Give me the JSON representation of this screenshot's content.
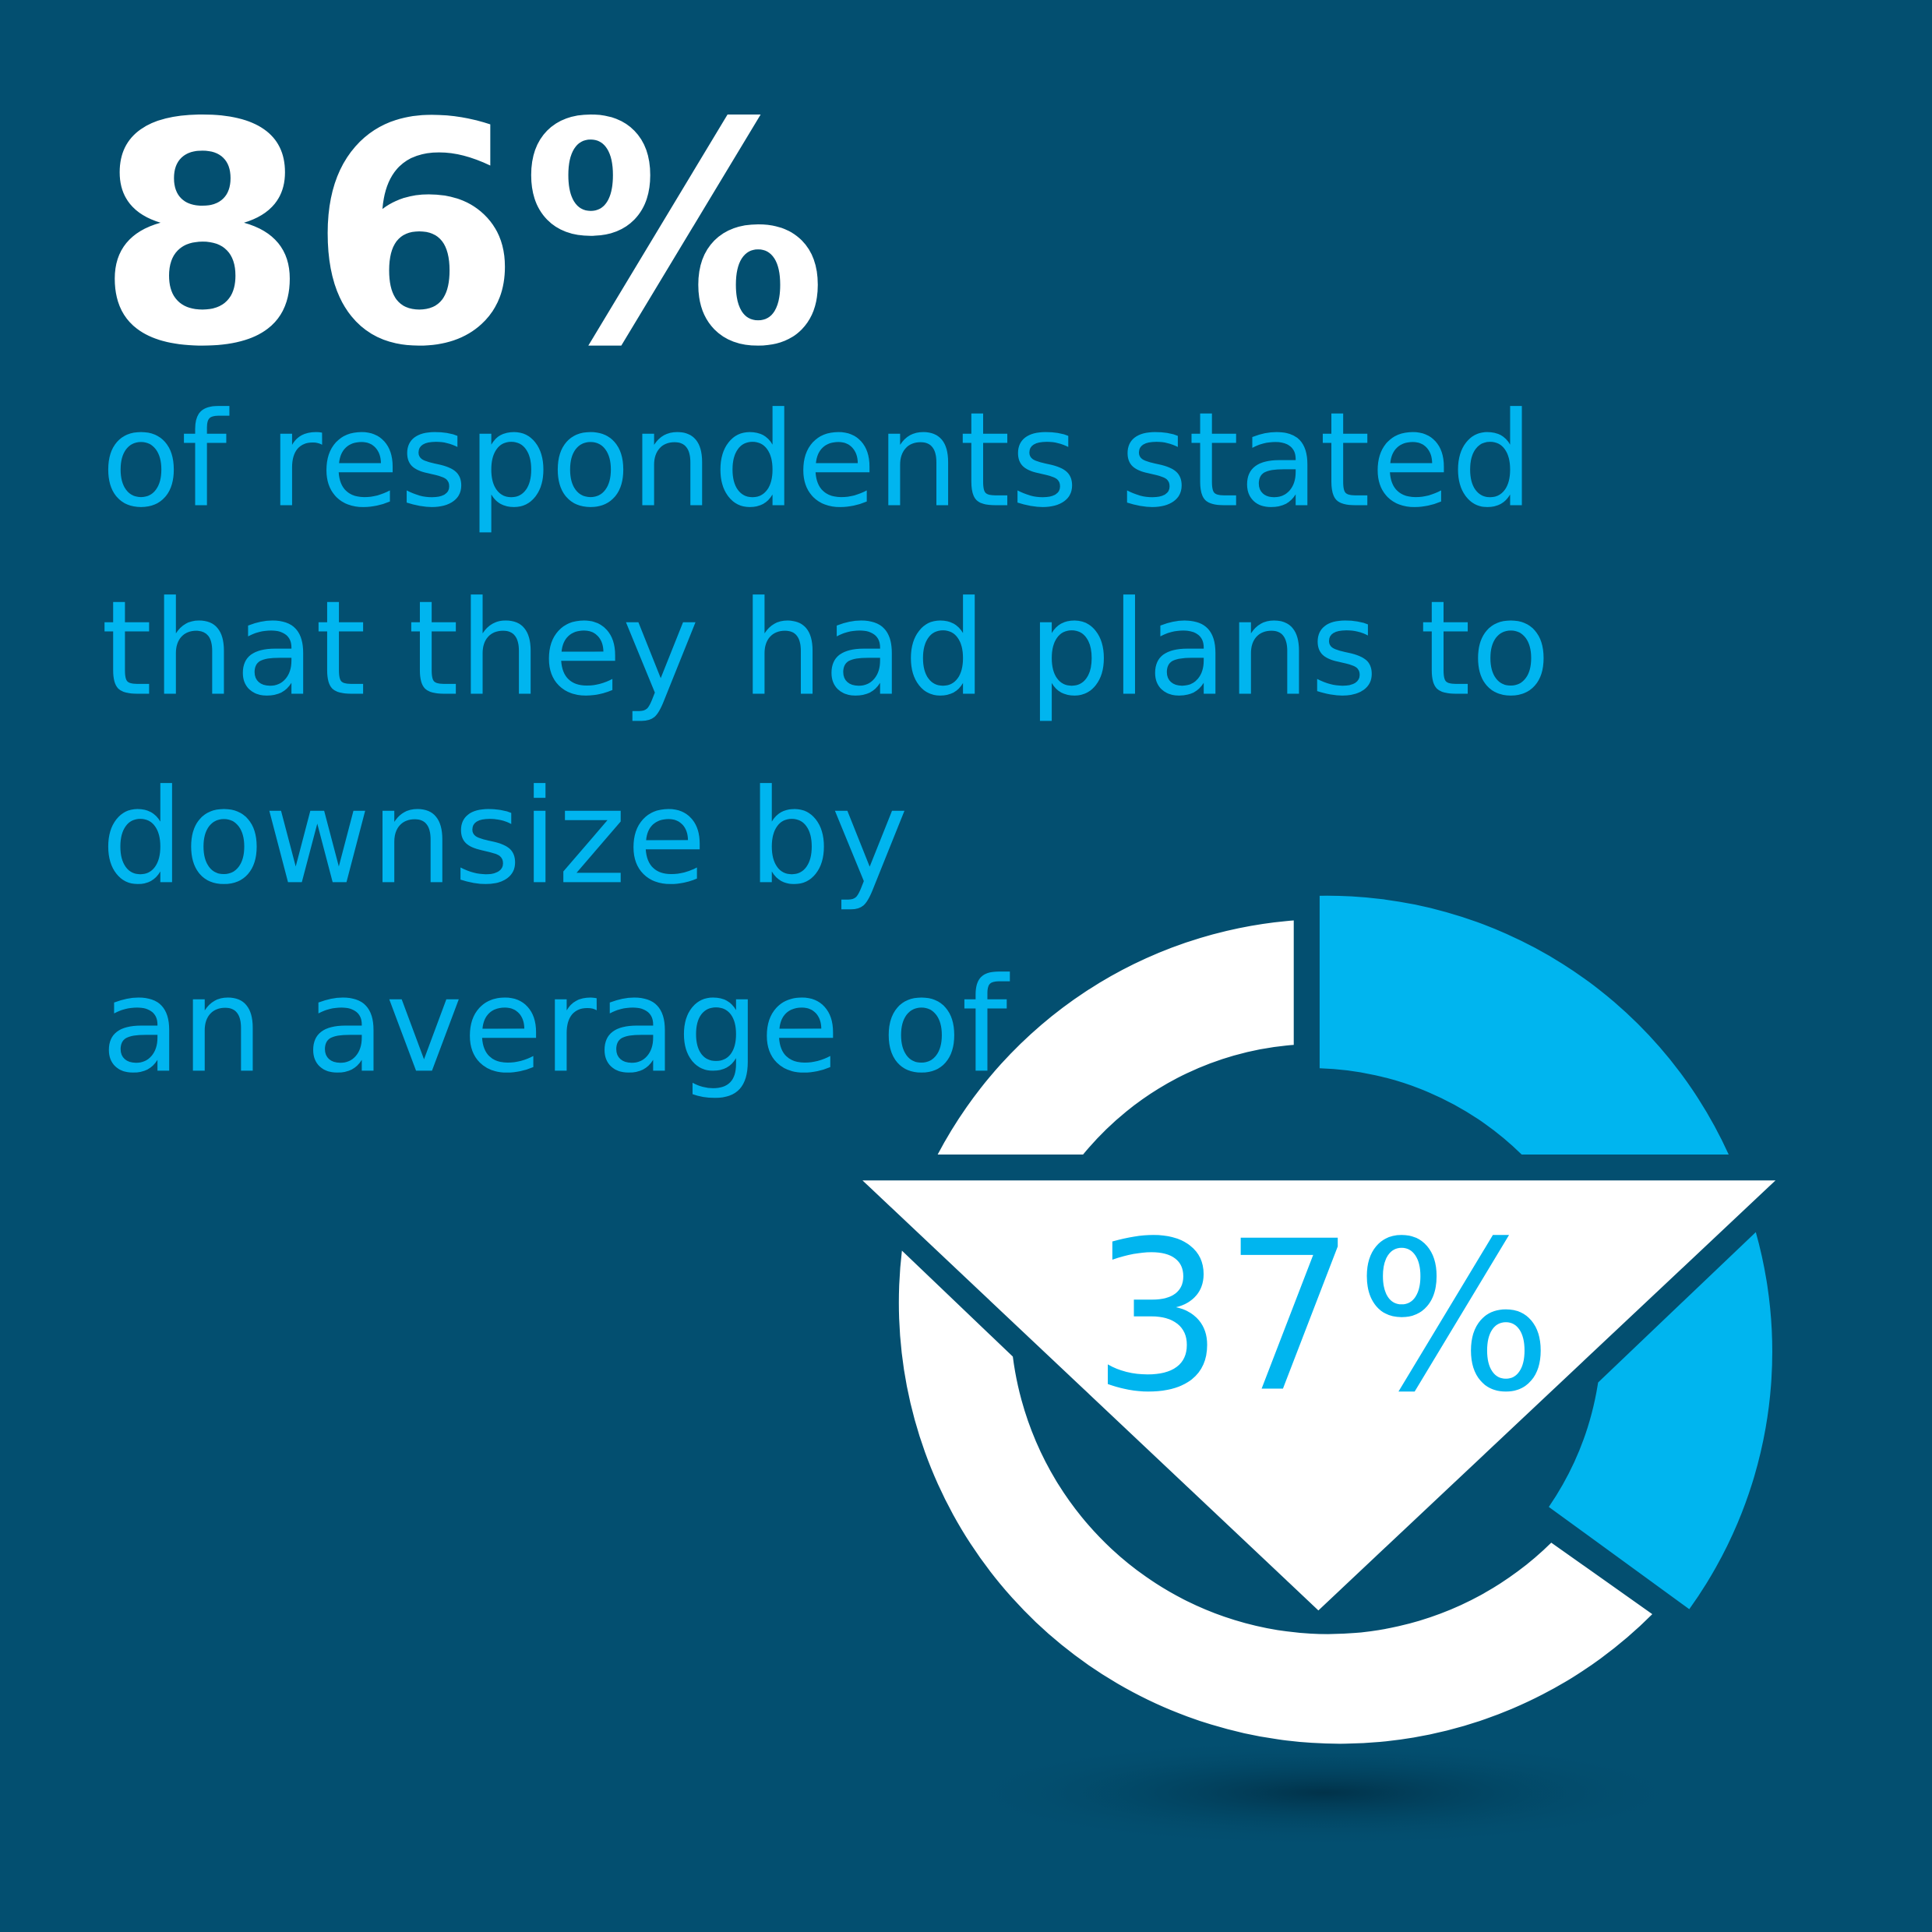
{
  "headline": "86%",
  "body": {
    "lines": [
      "of respondents stated",
      "that they had plans to",
      "downsize by",
      "an average of"
    ]
  },
  "figure": {
    "label": "37%"
  }
}
